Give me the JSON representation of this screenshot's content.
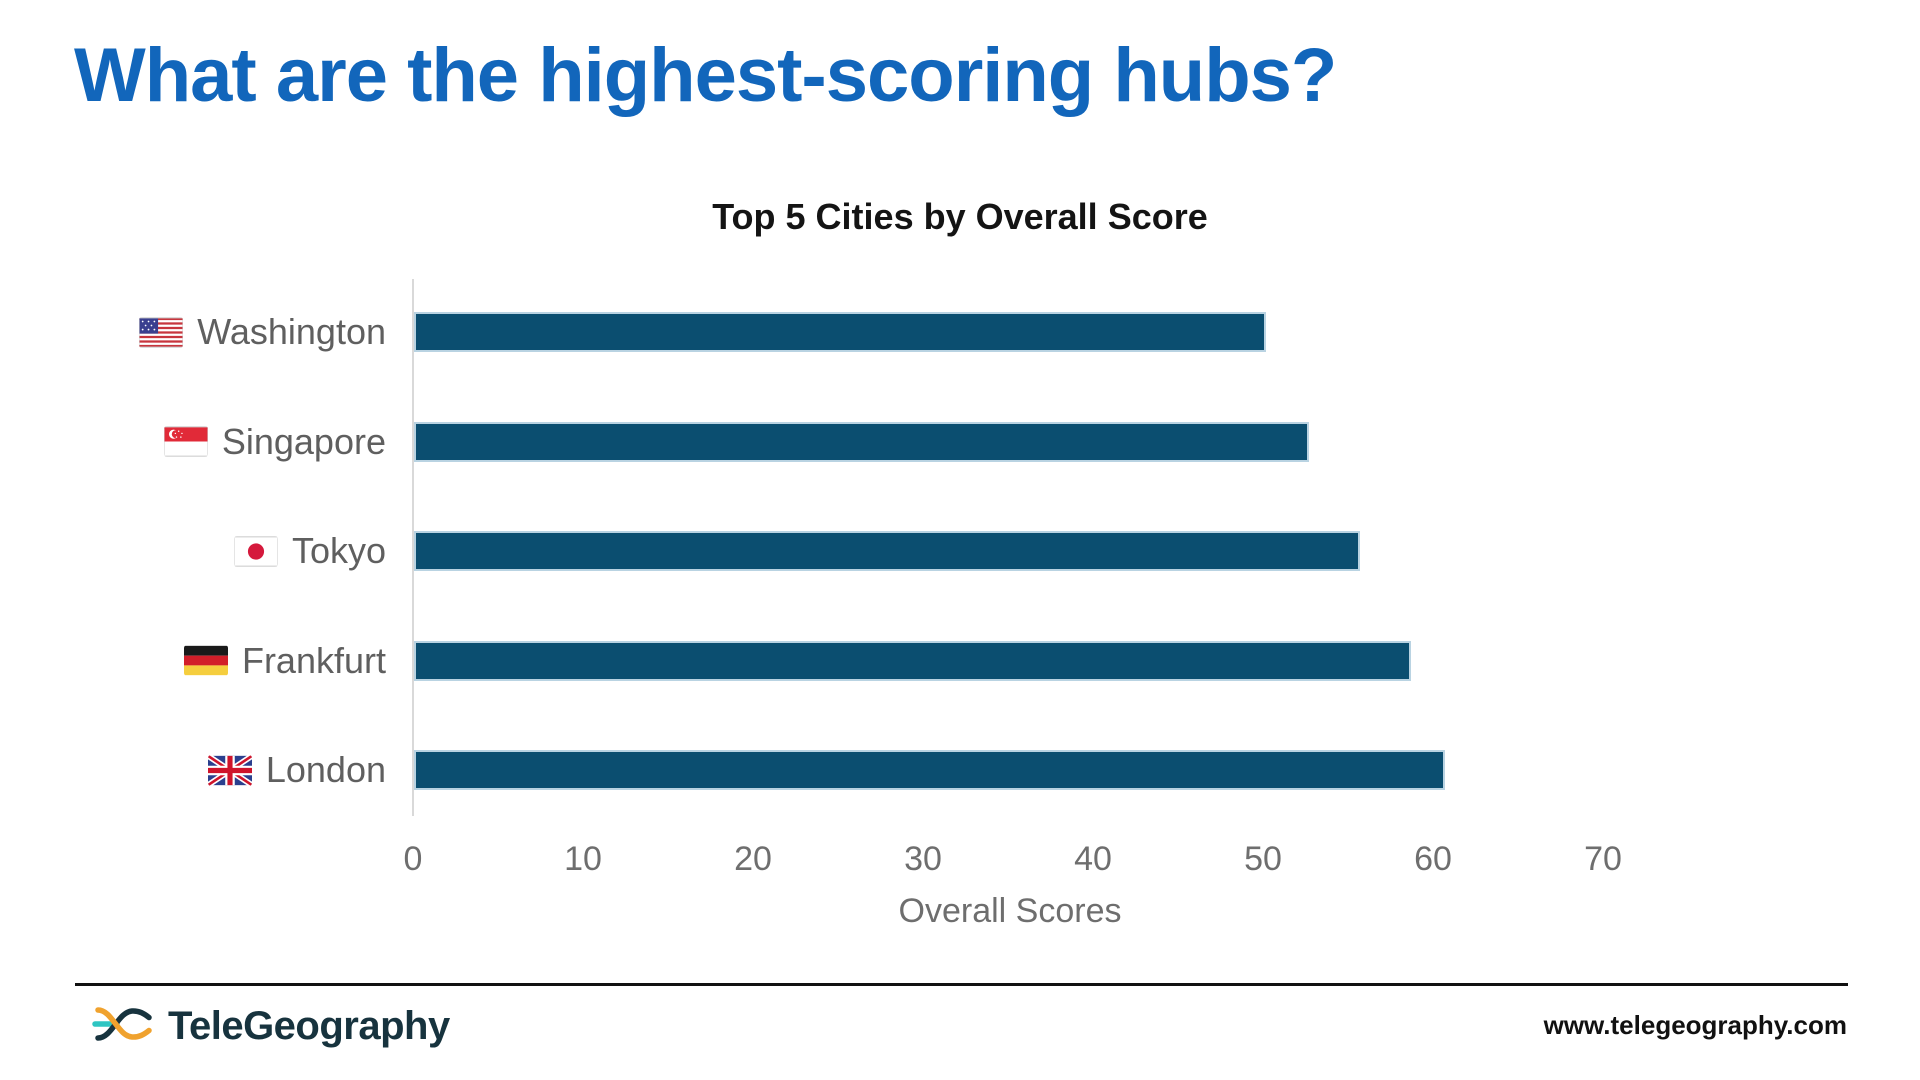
{
  "page": {
    "title": "What are the highest-scoring hubs?"
  },
  "chart_data": {
    "type": "bar",
    "orientation": "horizontal",
    "title": "Top 5 Cities by Overall Score",
    "xlabel": "Overall Scores",
    "categories": [
      "Washington",
      "Singapore",
      "Tokyo",
      "Frankfurt",
      "London"
    ],
    "flag_icons": [
      "us-flag-icon",
      "singapore-flag-icon",
      "japan-flag-icon",
      "germany-flag-icon",
      "uk-flag-icon"
    ],
    "values": [
      50,
      52.5,
      55.5,
      58.5,
      60.5
    ],
    "xticks": [
      0,
      10,
      20,
      30,
      40,
      50,
      60,
      70
    ],
    "xlim": [
      0,
      76
    ],
    "grid": false,
    "legend": false,
    "bar_color": "#0b4e70",
    "bar_border_color": "#b9d3e2",
    "axis_color": "#d9d9d9",
    "label_color": "#5f5f5f"
  },
  "colors": {
    "headline_blue": "#1266bb",
    "brand_navy": "#17333e",
    "brand_orange": "#f0a22e",
    "brand_teal": "#2ec5c2"
  },
  "footer": {
    "brand": "TeleGeography",
    "logo_icon": "telegeography-x-logo-icon",
    "url": "www.telegeography.com"
  }
}
